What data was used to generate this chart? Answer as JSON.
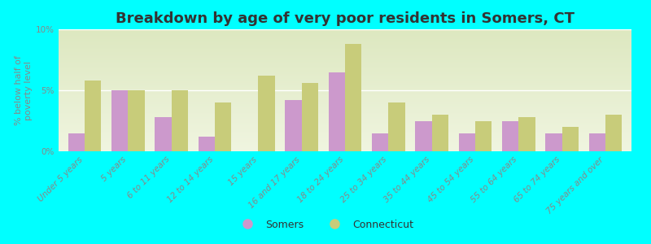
{
  "title": "Breakdown by age of very poor residents in Somers, CT",
  "ylabel": "% below half of\npoverty level",
  "background_outer": "#00FFFF",
  "background_inner_top": "#dde8c0",
  "background_inner_bottom": "#f0f5e0",
  "categories": [
    "Under 5 years",
    "5 years",
    "6 to 11 years",
    "12 to 14 years",
    "15 years",
    "16 and 17 years",
    "18 to 24 years",
    "25 to 34 years",
    "35 to 44 years",
    "45 to 54 years",
    "55 to 64 years",
    "65 to 74 years",
    "75 years and over"
  ],
  "somers_values": [
    1.5,
    5.0,
    2.8,
    1.2,
    0.0,
    4.2,
    6.5,
    1.5,
    2.5,
    1.5,
    2.5,
    1.5,
    1.5
  ],
  "ct_values": [
    5.8,
    5.0,
    5.0,
    4.0,
    6.2,
    5.6,
    8.8,
    4.0,
    3.0,
    2.5,
    2.8,
    2.0,
    3.0
  ],
  "somers_color": "#cc99cc",
  "ct_color": "#c8cc7a",
  "ylim": [
    0,
    10
  ],
  "yticks": [
    0,
    5,
    10
  ],
  "ytick_labels": [
    "0%",
    "5%",
    "10%"
  ],
  "bar_width": 0.38,
  "title_fontsize": 13,
  "axis_label_fontsize": 8,
  "tick_fontsize": 7.5,
  "legend_somers": "Somers",
  "legend_ct": "Connecticut"
}
